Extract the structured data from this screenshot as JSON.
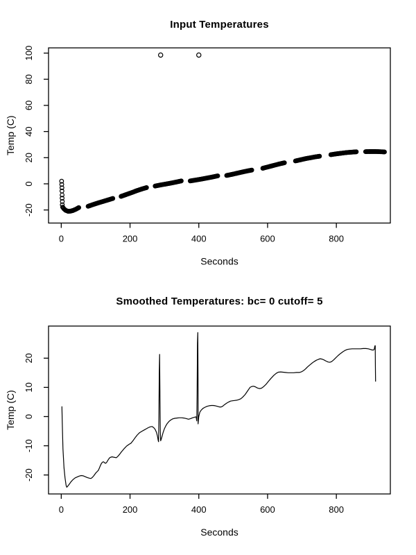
{
  "figure": {
    "background": "#ffffff",
    "foreground": "#000000"
  },
  "chart_data": [
    {
      "type": "scatter",
      "title": "Input Temperatures",
      "xlabel": "Seconds",
      "ylabel": "Temp (C)",
      "marker": "open-circle",
      "grid": "off",
      "legend": "none",
      "xlim": [
        -37,
        957
      ],
      "ylim": [
        -30,
        104
      ],
      "x_ticks": [
        0,
        200,
        400,
        600,
        800
      ],
      "y_ticks": [
        -20,
        0,
        20,
        40,
        60,
        80,
        100
      ],
      "initial_drop_points": [
        [
          1,
          2
        ],
        [
          1.5,
          -0.5
        ],
        [
          2,
          -3
        ],
        [
          2,
          -5.5
        ],
        [
          2.5,
          -8.5
        ],
        [
          2.5,
          -11
        ],
        [
          3,
          -13.5
        ],
        [
          3,
          -16
        ]
      ],
      "segments": [
        [
          [
            4,
            -17.8
          ],
          [
            8,
            -19.2
          ],
          [
            13,
            -20.3
          ],
          [
            20,
            -21
          ],
          [
            27,
            -20.9
          ],
          [
            34,
            -20.4
          ],
          [
            42,
            -19.5
          ],
          [
            51,
            -18.2
          ]
        ],
        [
          [
            78,
            -17.2
          ],
          [
            92,
            -15.9
          ],
          [
            106,
            -14.7
          ],
          [
            120,
            -13.6
          ],
          [
            135,
            -12.4
          ],
          [
            150,
            -11.2
          ]
        ],
        [
          [
            174,
            -9.6
          ],
          [
            190,
            -8.1
          ],
          [
            205,
            -6.7
          ],
          [
            220,
            -5.2
          ],
          [
            235,
            -3.9
          ],
          [
            248,
            -2.9
          ]
        ],
        [
          [
            273,
            -1.7
          ],
          [
            288,
            -0.9
          ],
          [
            303,
            -0.2
          ],
          [
            318,
            0.5
          ],
          [
            333,
            1.3
          ],
          [
            349,
            2.2
          ]
        ],
        [
          [
            375,
            2.2
          ],
          [
            391,
            2.9
          ],
          [
            407,
            3.6
          ],
          [
            423,
            4.4
          ],
          [
            439,
            5.2
          ],
          [
            455,
            6.1
          ]
        ],
        [
          [
            481,
            6.4
          ],
          [
            496,
            7.2
          ],
          [
            511,
            8.1
          ],
          [
            526,
            9.0
          ],
          [
            540,
            9.8
          ],
          [
            554,
            10.5
          ]
        ],
        [
          [
            586,
            11.9
          ],
          [
            602,
            13.0
          ],
          [
            618,
            14.1
          ],
          [
            634,
            15.2
          ],
          [
            649,
            16.1
          ]
        ],
        [
          [
            681,
            17.5
          ],
          [
            696,
            18.4
          ],
          [
            711,
            19.3
          ],
          [
            726,
            20.0
          ],
          [
            738,
            20.6
          ],
          [
            751,
            21.1
          ]
        ],
        [
          [
            784,
            22.3
          ],
          [
            799,
            22.9
          ],
          [
            814,
            23.4
          ],
          [
            829,
            23.9
          ],
          [
            843,
            24.2
          ],
          [
            858,
            24.5
          ]
        ],
        [
          [
            885,
            24.6
          ],
          [
            898,
            24.7
          ],
          [
            912,
            24.7
          ],
          [
            926,
            24.6
          ],
          [
            940,
            24.4
          ]
        ]
      ],
      "outliers": [
        [
          289,
          98.5
        ],
        [
          400,
          98.5
        ]
      ]
    },
    {
      "type": "line",
      "title": "Smoothed Temperatures: bc= 0 cutoff= 5",
      "xlabel": "Seconds",
      "ylabel": "Temp (C)",
      "grid": "off",
      "legend": "none",
      "xlim": [
        -37,
        957
      ],
      "ylim": [
        -26.5,
        31
      ],
      "x_ticks": [
        0,
        200,
        400,
        600,
        800
      ],
      "y_ticks": [
        -20,
        -10,
        0,
        10,
        20
      ],
      "spikes": [
        [
          286,
          21.3
        ],
        [
          397,
          28.8
        ]
      ],
      "points": [
        [
          1,
          3.4
        ],
        [
          2,
          3.4
        ],
        [
          3,
          -2
        ],
        [
          5,
          -11
        ],
        [
          8,
          -17.5
        ],
        [
          11,
          -21
        ],
        [
          14,
          -23.5
        ],
        [
          16,
          -24.2
        ],
        [
          19,
          -23.8
        ],
        [
          23,
          -23.2
        ],
        [
          28,
          -22.4
        ],
        [
          34,
          -21.6
        ],
        [
          40,
          -21.0
        ],
        [
          46,
          -20.7
        ],
        [
          52,
          -20.4
        ],
        [
          58,
          -20.2
        ],
        [
          64,
          -20.3
        ],
        [
          70,
          -20.6
        ],
        [
          76,
          -20.9
        ],
        [
          82,
          -21.1
        ],
        [
          86,
          -21.2
        ],
        [
          90,
          -20.9
        ],
        [
          95,
          -20.2
        ],
        [
          100,
          -19.4
        ],
        [
          104,
          -18.9
        ],
        [
          108,
          -18.4
        ],
        [
          111,
          -17.6
        ],
        [
          114,
          -16.7
        ],
        [
          117,
          -16.0
        ],
        [
          120,
          -15.6
        ],
        [
          123,
          -15.5
        ],
        [
          126,
          -15.8
        ],
        [
          129,
          -16.0
        ],
        [
          132,
          -15.7
        ],
        [
          136,
          -14.9
        ],
        [
          140,
          -14.2
        ],
        [
          144,
          -13.9
        ],
        [
          148,
          -13.8
        ],
        [
          152,
          -13.9
        ],
        [
          156,
          -14.0
        ],
        [
          160,
          -14.1
        ],
        [
          164,
          -13.7
        ],
        [
          169,
          -13.0
        ],
        [
          175,
          -12.1
        ],
        [
          182,
          -11.1
        ],
        [
          190,
          -10.1
        ],
        [
          197,
          -9.5
        ],
        [
          203,
          -9.1
        ],
        [
          209,
          -8.2
        ],
        [
          215,
          -7.2
        ],
        [
          221,
          -6.3
        ],
        [
          228,
          -5.5
        ],
        [
          235,
          -5.0
        ],
        [
          241,
          -4.6
        ],
        [
          247,
          -4.2
        ],
        [
          253,
          -3.8
        ],
        [
          259,
          -3.5
        ],
        [
          264,
          -3.4
        ],
        [
          269,
          -3.8
        ],
        [
          273,
          -4.4
        ],
        [
          277,
          -5.4
        ],
        [
          280,
          -6.8
        ],
        [
          282,
          -8.2
        ],
        [
          283,
          -8.6
        ],
        [
          284,
          0
        ],
        [
          285,
          15
        ],
        [
          286,
          21.3
        ],
        [
          287,
          8
        ],
        [
          288,
          -5
        ],
        [
          289,
          -8.3
        ],
        [
          290,
          -8
        ],
        [
          292,
          -7.2
        ],
        [
          296,
          -5.5
        ],
        [
          300,
          -4.2
        ],
        [
          304,
          -3.2
        ],
        [
          308,
          -2.4
        ],
        [
          313,
          -1.7
        ],
        [
          318,
          -1.2
        ],
        [
          324,
          -0.8
        ],
        [
          330,
          -0.6
        ],
        [
          336,
          -0.5
        ],
        [
          343,
          -0.4
        ],
        [
          350,
          -0.4
        ],
        [
          357,
          -0.5
        ],
        [
          364,
          -0.7
        ],
        [
          370,
          -0.9
        ],
        [
          376,
          -0.7
        ],
        [
          382,
          -0.4
        ],
        [
          388,
          -0.2
        ],
        [
          392,
          -0.1
        ],
        [
          394,
          -1.5
        ],
        [
          395,
          8
        ],
        [
          396,
          25
        ],
        [
          397,
          28.8
        ],
        [
          398,
          10
        ],
        [
          398,
          -2.5
        ],
        [
          400,
          0
        ],
        [
          403,
          1.5
        ],
        [
          407,
          2.2
        ],
        [
          412,
          2.8
        ],
        [
          418,
          3.2
        ],
        [
          424,
          3.5
        ],
        [
          430,
          3.7
        ],
        [
          436,
          3.8
        ],
        [
          442,
          3.8
        ],
        [
          448,
          3.7
        ],
        [
          454,
          3.5
        ],
        [
          460,
          3.3
        ],
        [
          465,
          3.3
        ],
        [
          470,
          3.6
        ],
        [
          475,
          4.1
        ],
        [
          481,
          4.6
        ],
        [
          487,
          5.0
        ],
        [
          492,
          5.3
        ],
        [
          498,
          5.4
        ],
        [
          504,
          5.5
        ],
        [
          510,
          5.6
        ],
        [
          516,
          5.8
        ],
        [
          522,
          6.1
        ],
        [
          528,
          6.7
        ],
        [
          535,
          7.6
        ],
        [
          542,
          8.8
        ],
        [
          549,
          10.0
        ],
        [
          554,
          10.3
        ],
        [
          559,
          10.4
        ],
        [
          564,
          10.2
        ],
        [
          570,
          9.8
        ],
        [
          576,
          9.6
        ],
        [
          582,
          9.7
        ],
        [
          588,
          10.2
        ],
        [
          595,
          11.0
        ],
        [
          602,
          12.0
        ],
        [
          610,
          13.1
        ],
        [
          618,
          14.1
        ],
        [
          625,
          14.8
        ],
        [
          631,
          15.2
        ],
        [
          638,
          15.3
        ],
        [
          645,
          15.2
        ],
        [
          652,
          15.1
        ],
        [
          660,
          15.0
        ],
        [
          668,
          15.0
        ],
        [
          676,
          15.0
        ],
        [
          684,
          15.1
        ],
        [
          692,
          15.1
        ],
        [
          698,
          15.3
        ],
        [
          704,
          15.7
        ],
        [
          710,
          16.3
        ],
        [
          716,
          17.0
        ],
        [
          722,
          17.6
        ],
        [
          728,
          18.2
        ],
        [
          735,
          18.8
        ],
        [
          742,
          19.3
        ],
        [
          748,
          19.6
        ],
        [
          753,
          19.8
        ],
        [
          758,
          19.7
        ],
        [
          764,
          19.4
        ],
        [
          770,
          19.0
        ],
        [
          776,
          18.7
        ],
        [
          781,
          18.6
        ],
        [
          786,
          18.8
        ],
        [
          792,
          19.4
        ],
        [
          798,
          20.1
        ],
        [
          805,
          20.9
        ],
        [
          812,
          21.6
        ],
        [
          819,
          22.2
        ],
        [
          826,
          22.7
        ],
        [
          832,
          23.0
        ],
        [
          838,
          23.1
        ],
        [
          846,
          23.2
        ],
        [
          854,
          23.2
        ],
        [
          862,
          23.2
        ],
        [
          870,
          23.2
        ],
        [
          878,
          23.3
        ],
        [
          886,
          23.3
        ],
        [
          893,
          23.2
        ],
        [
          899,
          23.0
        ],
        [
          904,
          22.8
        ],
        [
          908,
          22.8
        ],
        [
          910,
          23.0
        ],
        [
          912,
          24.2
        ],
        [
          913,
          24.3
        ],
        [
          913.5,
          18
        ],
        [
          914,
          12
        ]
      ]
    }
  ]
}
